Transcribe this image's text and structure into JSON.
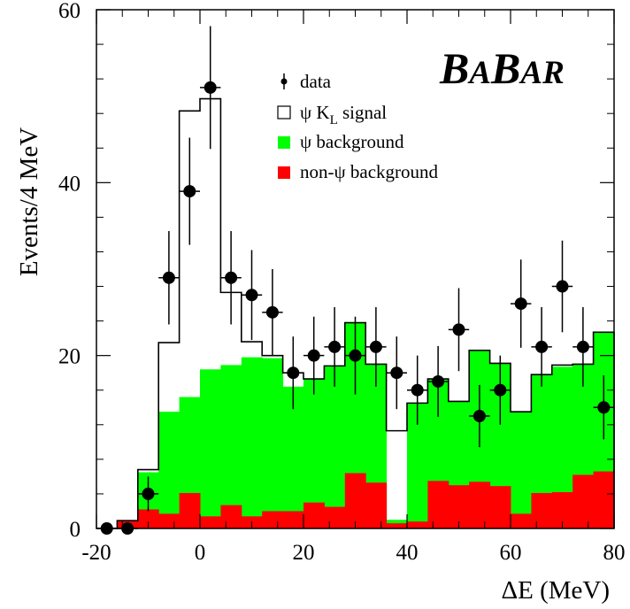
{
  "chart_data": {
    "type": "bar",
    "title": "",
    "xlabel": "ΔE (MeV)",
    "ylabel": "Events/4 MeV",
    "xlim": [
      -20,
      80
    ],
    "ylim": [
      0,
      60
    ],
    "x_ticks": [
      "-20",
      "0",
      "20",
      "40",
      "60",
      "80"
    ],
    "y_ticks": [
      "0",
      "20",
      "40",
      "60"
    ],
    "bin_width": 4,
    "bin_edges": [
      -20,
      -16,
      -12,
      -8,
      -4,
      0,
      4,
      8,
      12,
      16,
      20,
      24,
      28,
      32,
      36,
      40,
      44,
      48,
      52,
      56,
      60,
      64,
      68,
      72,
      76,
      80
    ],
    "series": [
      {
        "name": "non-ψ background",
        "key": "nonpsi",
        "color": "#ff0000",
        "values": [
          0,
          0.9,
          2.2,
          1.7,
          4.1,
          1.4,
          2.7,
          1.4,
          2.0,
          2.0,
          3.0,
          2.5,
          6.4,
          5.3,
          0.6,
          0.8,
          5.5,
          5.0,
          5.4,
          4.9,
          1.7,
          4.1,
          4.2,
          6.2,
          6.6
        ]
      },
      {
        "name": "ψ background",
        "key": "psi",
        "color": "#00ff00",
        "values": [
          0,
          0.9,
          6.5,
          13.5,
          15.2,
          18.4,
          18.9,
          19.8,
          19.7,
          16.4,
          17.3,
          18.8,
          23.8,
          19.0,
          1.0,
          14.5,
          17.3,
          14.7,
          20.6,
          19.1,
          13.5,
          17.8,
          18.7,
          19.0,
          22.7
        ]
      },
      {
        "name": "ψ K_L signal",
        "key": "signal",
        "color": "#ffffff",
        "values": [
          0,
          0.9,
          6.8,
          21.5,
          48.3,
          49.7,
          27.3,
          21.6,
          20.0,
          18.0,
          17.3,
          18.8,
          23.8,
          19.0,
          11.3,
          14.5,
          17.3,
          14.7,
          20.6,
          19.1,
          13.5,
          17.8,
          18.9,
          19.0,
          22.7
        ]
      }
    ],
    "data_points": {
      "name": "data",
      "x": [
        -18,
        -14,
        -10,
        -6,
        -2,
        2,
        6,
        10,
        14,
        18,
        22,
        26,
        30,
        34,
        38,
        42,
        46,
        50,
        54,
        58,
        62,
        66,
        70,
        74,
        78
      ],
      "y": [
        0,
        0,
        4,
        29,
        39,
        51,
        29,
        27,
        25,
        18,
        20,
        21,
        20,
        21,
        18,
        16,
        17,
        23,
        13,
        16,
        26,
        21,
        28,
        21,
        14
      ],
      "err": [
        0,
        0,
        2,
        5.4,
        6.2,
        7.1,
        5.4,
        5.2,
        5.0,
        4.2,
        4.5,
        4.6,
        4.5,
        4.6,
        4.2,
        4.0,
        4.1,
        4.8,
        3.6,
        4.0,
        5.1,
        4.6,
        5.3,
        4.6,
        3.7
      ]
    },
    "legend": {
      "position": "top-right",
      "entries": [
        {
          "label": "data",
          "marker": "point"
        },
        {
          "label": "ψ K",
          "sub": "L",
          "suffix": " signal",
          "marker": "open-box"
        },
        {
          "label": "ψ background",
          "marker": "green-box"
        },
        {
          "label": "non-ψ background",
          "marker": "red-box"
        }
      ]
    },
    "watermark": {
      "big1": "B",
      "small1": "A",
      "big2": "B",
      "small2": "AR"
    },
    "grid": false
  }
}
